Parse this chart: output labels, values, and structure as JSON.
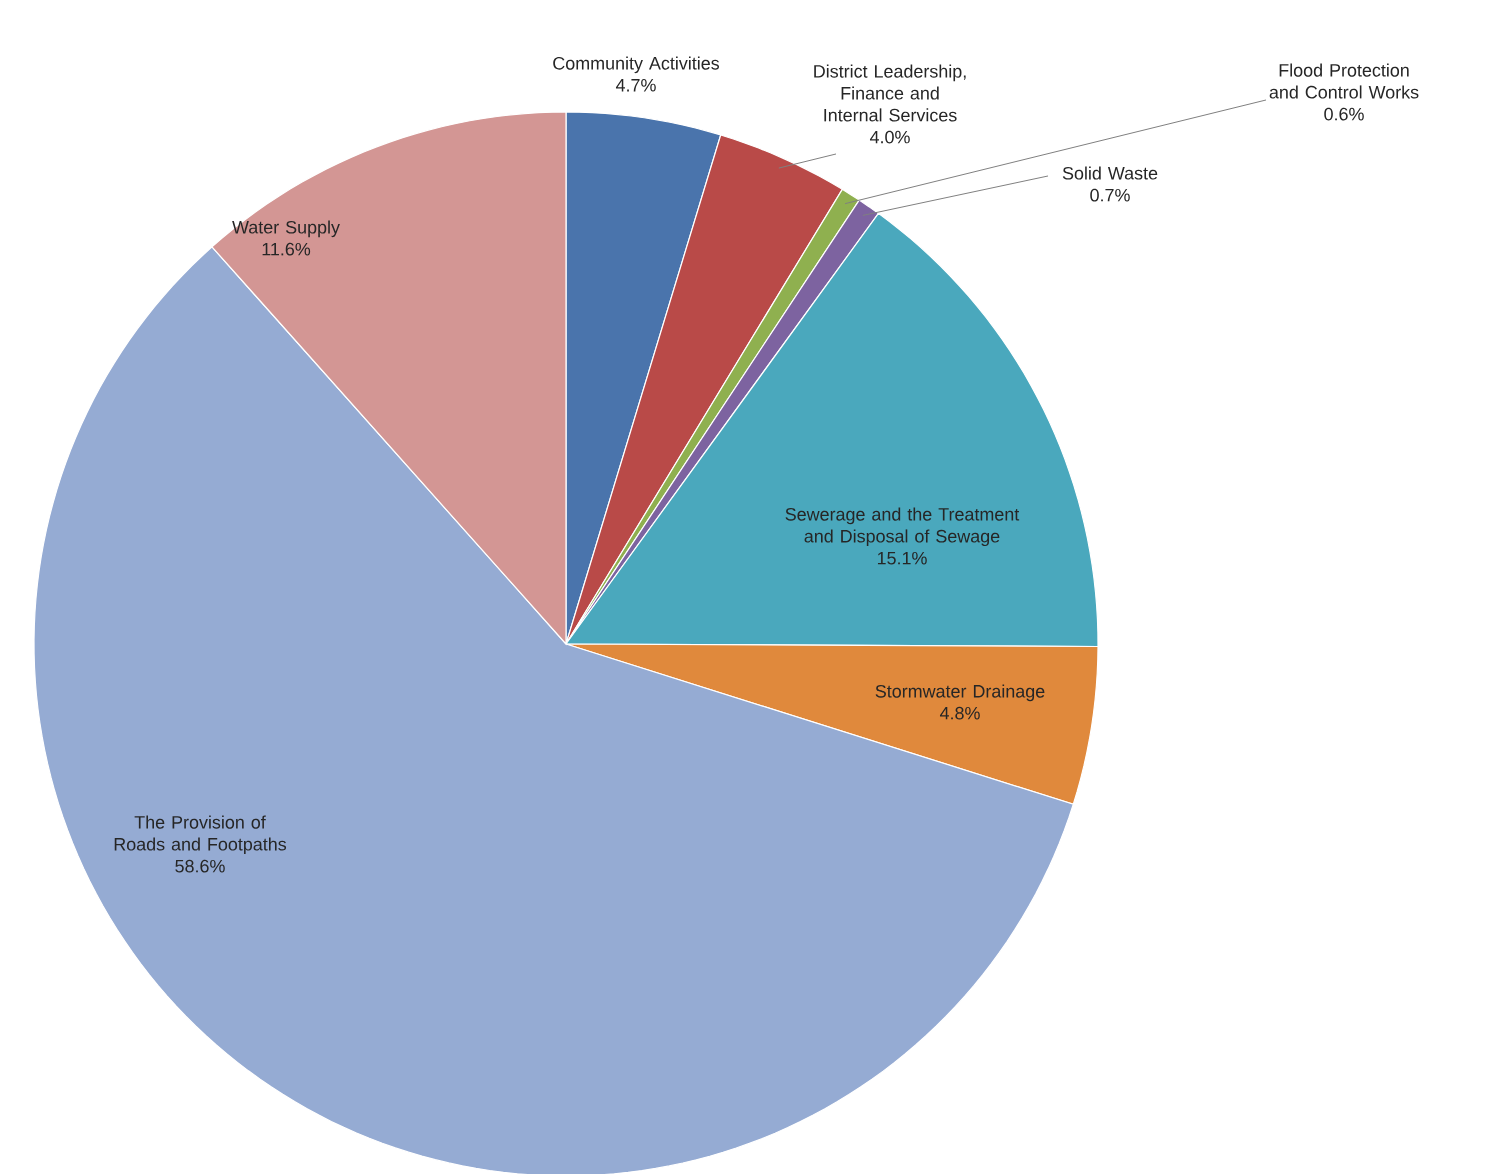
{
  "chart_data": {
    "type": "pie",
    "categories": [
      "Community Activities",
      "District Leadership, Finance and Internal Services",
      "Flood Protection and Control Works",
      "Solid Waste",
      "Sewerage and the Treatment and Disposal of Sewage",
      "Stormwater Drainage",
      "The Provision of Roads and Footpaths",
      "Water Supply"
    ],
    "values": [
      4.7,
      4.0,
      0.6,
      0.7,
      15.1,
      4.8,
      58.6,
      11.6
    ],
    "value_labels": [
      "4.7%",
      "4.0%",
      "0.6%",
      "0.7%",
      "15.1%",
      "4.8%",
      "58.6%",
      "11.6%"
    ],
    "colors": [
      "#4a74ac",
      "#b94a48",
      "#8fb04f",
      "#7d63a0",
      "#4aa8bd",
      "#e0893c",
      "#95abd3",
      "#d39694"
    ]
  }
}
